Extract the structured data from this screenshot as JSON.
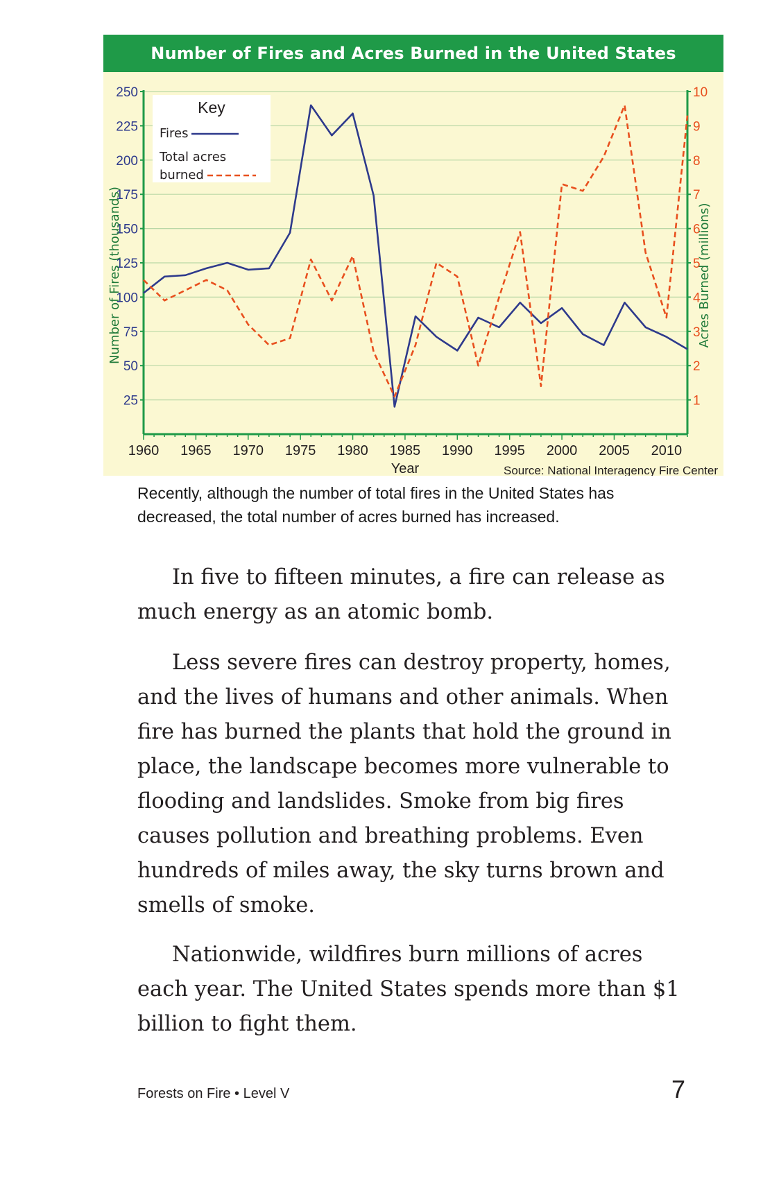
{
  "chart": {
    "banner_title": "Number of Fires and Acres Burned in the United States",
    "key_title": "Key",
    "key_fires": "Fires",
    "key_acres_line1": "Total acres",
    "key_acres_line2": "burned",
    "source": "Source: National Interagency Fire Center",
    "colors": {
      "fires": "#2e3a8c",
      "acres": "#e8501e",
      "banner": "#1f9a48",
      "panel": "#fbf8d2",
      "grid": "#b9d7a6"
    }
  },
  "chart_data": {
    "type": "line",
    "title": "Number of Fires and Acres Burned in the United States",
    "xlabel": "Year",
    "ylabel": "Number of Fires (thousands)",
    "y2label": "Acres Burned (millions)",
    "xlim": [
      1960,
      2012
    ],
    "ylim": [
      0,
      250
    ],
    "y2lim": [
      0,
      10
    ],
    "x_ticks": [
      1960,
      1965,
      1970,
      1975,
      1980,
      1985,
      1990,
      1995,
      2000,
      2005,
      2010
    ],
    "y_ticks": [
      25,
      50,
      75,
      100,
      125,
      150,
      175,
      200,
      225,
      250
    ],
    "y2_ticks": [
      1,
      2,
      3,
      4,
      5,
      6,
      7,
      8,
      9,
      10
    ],
    "grid": true,
    "legend_position": "top-left",
    "series": [
      {
        "name": "Fires",
        "axis": "left",
        "style": "solid",
        "x": [
          1960,
          1962,
          1964,
          1966,
          1968,
          1970,
          1972,
          1974,
          1976,
          1978,
          1980,
          1982,
          1984,
          1986,
          1988,
          1990,
          1992,
          1994,
          1996,
          1998,
          2000,
          2002,
          2004,
          2006,
          2008,
          2010,
          2012
        ],
        "values": [
          103,
          115,
          116,
          121,
          125,
          120,
          121,
          147,
          240,
          218,
          234,
          174,
          20,
          86,
          71,
          61,
          85,
          78,
          96,
          81,
          92,
          73,
          65,
          96,
          78,
          71,
          62
        ]
      },
      {
        "name": "Total acres burned",
        "axis": "right",
        "style": "dashed",
        "x": [
          1960,
          1962,
          1964,
          1966,
          1968,
          1970,
          1972,
          1974,
          1976,
          1978,
          1980,
          1982,
          1984,
          1986,
          1988,
          1990,
          1992,
          1994,
          1996,
          1998,
          2000,
          2002,
          2004,
          2006,
          2008,
          2010,
          2012
        ],
        "values": [
          4.5,
          3.9,
          4.2,
          4.5,
          4.2,
          3.2,
          2.6,
          2.8,
          5.1,
          3.9,
          5.2,
          2.4,
          1.1,
          2.6,
          5.0,
          4.6,
          2.0,
          4.0,
          5.9,
          1.4,
          7.3,
          7.1,
          8.1,
          9.6,
          5.3,
          3.4,
          9.3
        ]
      }
    ]
  },
  "caption": "Recently, although the number of total fires in the United States has decreased, the total number of acres burned has increased.",
  "paragraphs": [
    "In five to fifteen minutes, a fire can release as much energy as an atomic bomb.",
    "Less severe fires can destroy property, homes, and the lives of humans and other animals. When fire has burned the plants that hold the ground in place, the landscape becomes more vulnerable to flooding and landslides. Smoke from big fires causes pollution and breathing problems. Even hundreds of miles away, the sky turns brown and smells of smoke.",
    "Nationwide, wildfires burn millions of acres each year. The United States spends more than $1 billion to fight them."
  ],
  "footer": {
    "book_title": "Forests on Fire • Level V",
    "page_number": "7"
  }
}
